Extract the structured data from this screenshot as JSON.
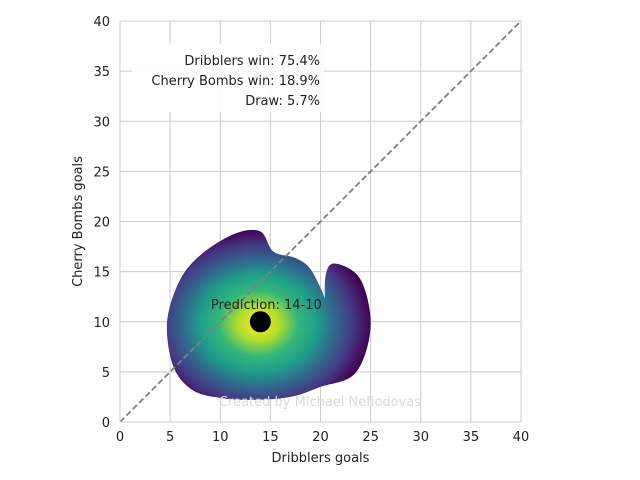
{
  "chart_data": {
    "type": "heatmap",
    "title": "",
    "xlabel": "Dribblers goals",
    "ylabel": "Cherry Bombs goals",
    "xlim": [
      0,
      40
    ],
    "ylim": [
      0,
      40
    ],
    "xticks": [
      0,
      5,
      10,
      15,
      20,
      25,
      30,
      35,
      40
    ],
    "yticks": [
      0,
      5,
      10,
      15,
      20,
      25,
      30,
      35,
      40
    ],
    "grid": true,
    "diagonal": {
      "from": [
        0,
        0
      ],
      "to": [
        40,
        40
      ],
      "style": "dashed",
      "color": "#808080"
    },
    "density": {
      "colormap": "viridis",
      "center": [
        14,
        10
      ],
      "outline": [
        [
          20.5,
          9.8
        ],
        [
          20.5,
          12
        ],
        [
          19.8,
          13.8
        ],
        [
          18.8,
          15.5
        ],
        [
          17.4,
          16.4
        ],
        [
          15.3,
          17.0
        ],
        [
          14.0,
          19.0
        ],
        [
          11.5,
          18.8
        ],
        [
          8.2,
          16.8
        ],
        [
          6.0,
          14.2
        ],
        [
          4.7,
          10.0
        ],
        [
          5.3,
          5.6
        ],
        [
          7.2,
          3.2
        ],
        [
          10.0,
          2.4
        ],
        [
          13.2,
          2.2
        ],
        [
          17.0,
          2.5
        ],
        [
          20.0,
          3.5
        ],
        [
          23.5,
          4.9
        ],
        [
          25.0,
          9.5
        ],
        [
          24.0,
          14.2
        ],
        [
          21.5,
          15.8
        ],
        [
          20.5,
          14.5
        ]
      ]
    },
    "prediction": {
      "x": 14,
      "y": 10,
      "label": "Prediction: 14-10"
    },
    "annotations": [
      "Dribblers win: 75.4%",
      "Cherry Bombs win: 18.9%",
      "Draw: 5.7%"
    ],
    "watermark": "Created by Michael Nefiodovas",
    "colors": {
      "grid": "#cccccc",
      "axes": "#cccccc",
      "marker": "#000000",
      "watermark": "#d9d9d9"
    }
  }
}
